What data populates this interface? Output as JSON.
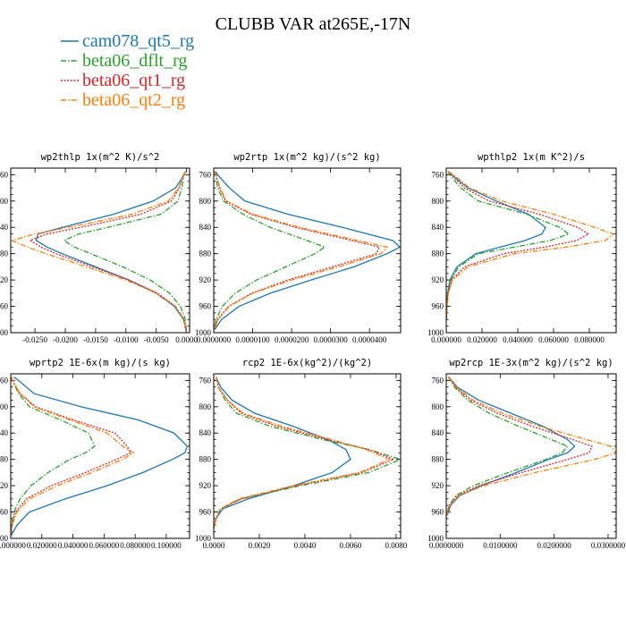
{
  "figure": {
    "title": "CLUBB VAR at265E,-17N"
  },
  "legend": [
    {
      "name": "cam078_qt5_rg",
      "color": "#1f77b4",
      "dash": "solid"
    },
    {
      "name": "beta06_dflt_rg",
      "color": "#2ca02c",
      "dash": "dashdot"
    },
    {
      "name": "beta06_qt1_rg",
      "color": "#d62728",
      "dash": "dotted"
    },
    {
      "name": "beta06_qt2_rg",
      "color": "#ff7f0e",
      "dash": "dashdot"
    }
  ],
  "chart_data": [
    {
      "type": "line",
      "title": "wp2thlp  1x(m^2 K)/s^2",
      "xlim": [
        -0.029,
        0.0005
      ],
      "ylim": [
        1000,
        750
      ],
      "xticks": [
        -0.025,
        -0.02,
        -0.015,
        -0.01,
        -0.005,
        0
      ],
      "xtick_labels": [
        "-0.0250",
        "-0.0200",
        "-0.0150",
        "-0.0100",
        "-0.0050",
        "0.0000"
      ],
      "yticks": [
        760,
        800,
        840,
        880,
        920,
        960,
        1000
      ],
      "y": [
        755,
        760,
        780,
        800,
        820,
        840,
        850,
        860,
        870,
        880,
        900,
        920,
        940,
        960,
        980,
        1000
      ],
      "series": [
        {
          "name": "cam078_qt5_rg",
          "values": [
            -0.0002,
            -0.0004,
            -0.0018,
            -0.0055,
            -0.012,
            -0.0205,
            -0.0245,
            -0.0248,
            -0.023,
            -0.0205,
            -0.015,
            -0.0095,
            -0.005,
            -0.002,
            -0.0005,
            0.0
          ]
        },
        {
          "name": "beta06_dflt_rg",
          "values": [
            -0.0002,
            -0.0004,
            -0.0008,
            -0.0014,
            -0.0042,
            -0.013,
            -0.0178,
            -0.0202,
            -0.0185,
            -0.0158,
            -0.0105,
            -0.006,
            -0.0028,
            -0.001,
            -0.0002,
            0.0
          ]
        },
        {
          "name": "beta06_qt1_rg",
          "values": [
            -0.0002,
            -0.0005,
            -0.0012,
            -0.0025,
            -0.0075,
            -0.0175,
            -0.023,
            -0.0258,
            -0.024,
            -0.0215,
            -0.0155,
            -0.0095,
            -0.0048,
            -0.0018,
            -0.0004,
            0.0
          ]
        },
        {
          "name": "beta06_qt2_rg",
          "values": [
            -0.0002,
            -0.0005,
            -0.0013,
            -0.003,
            -0.009,
            -0.0195,
            -0.025,
            -0.0288,
            -0.0262,
            -0.0232,
            -0.0165,
            -0.01,
            -0.005,
            -0.0018,
            -0.0004,
            0.0
          ]
        }
      ]
    },
    {
      "type": "line",
      "title": "wp2rtp  1x(m^2 kg)/(s^2 kg)",
      "xlim": [
        0.0,
        4.8e-05
      ],
      "ylim": [
        1000,
        750
      ],
      "xticks": [
        0.0,
        1e-05,
        2e-05,
        3e-05,
        4e-05
      ],
      "xtick_labels": [
        "0.0000000",
        "0.0000100",
        "0.0000200",
        "0.0000300",
        "0.0000400"
      ],
      "yticks": [
        760,
        800,
        840,
        880,
        920,
        960,
        1000
      ],
      "y": [
        755,
        760,
        780,
        800,
        820,
        840,
        860,
        870,
        880,
        900,
        920,
        940,
        960,
        980,
        995
      ],
      "series": [
        {
          "name": "cam078_qt5_rg",
          "values": [
            5e-07,
            1e-06,
            4e-06,
            8e-06,
            1.9e-05,
            3.3e-05,
            4.6e-05,
            4.78e-05,
            4.45e-05,
            3.6e-05,
            2.5e-05,
            1.45e-05,
            6.5e-06,
            2e-06,
            3e-07
          ]
        },
        {
          "name": "beta06_dflt_rg",
          "values": [
            2e-07,
            5e-07,
            1e-06,
            2.5e-06,
            7.5e-06,
            1.45e-05,
            2.4e-05,
            2.85e-05,
            2.6e-05,
            1.85e-05,
            1.1e-05,
            5.5e-06,
            2.2e-06,
            6e-07,
            1e-07
          ]
        },
        {
          "name": "beta06_qt1_rg",
          "values": [
            3e-07,
            6e-07,
            1.5e-06,
            3e-06,
            9.5e-06,
            2.1e-05,
            3.55e-05,
            4.25e-05,
            4.18e-05,
            3.05e-05,
            1.9e-05,
            9.8e-06,
            3.8e-06,
            1e-06,
            2e-07
          ]
        },
        {
          "name": "beta06_qt2_rg",
          "values": [
            3e-07,
            6e-07,
            1.6e-06,
            3.3e-06,
            1e-05,
            2.2e-05,
            3.7e-05,
            4.45e-05,
            4.3e-05,
            3.2e-05,
            2e-05,
            1e-05,
            4e-06,
            1.1e-06,
            2e-07
          ]
        }
      ]
    },
    {
      "type": "line",
      "title": "wpthlp2  1x(m K^2)/s",
      "xlim": [
        0.0,
        0.095
      ],
      "ylim": [
        1000,
        750
      ],
      "xticks": [
        0.0,
        0.02,
        0.04,
        0.06,
        0.08
      ],
      "xtick_labels": [
        "0.000000",
        "0.020000",
        "0.040000",
        "0.060000",
        "0.080000"
      ],
      "yticks": [
        760,
        800,
        840,
        880,
        920,
        960,
        1000
      ],
      "y": [
        755,
        760,
        780,
        800,
        820,
        840,
        850,
        860,
        870,
        880,
        900,
        920,
        940,
        960,
        980
      ],
      "series": [
        {
          "name": "cam078_qt5_rg",
          "values": [
            0.001,
            0.003,
            0.012,
            0.028,
            0.046,
            0.0555,
            0.0535,
            0.044,
            0.03,
            0.0165,
            0.006,
            0.002,
            0.0008,
            0.0003,
            0.0001
          ]
        },
        {
          "name": "beta06_dflt_rg",
          "values": [
            0.001,
            0.002,
            0.008,
            0.018,
            0.045,
            0.0635,
            0.0685,
            0.058,
            0.038,
            0.018,
            0.007,
            0.0025,
            0.0008,
            0.0003,
            0.0001
          ]
        },
        {
          "name": "beta06_qt1_rg",
          "values": [
            0.001,
            0.003,
            0.01,
            0.024,
            0.052,
            0.0735,
            0.0795,
            0.073,
            0.055,
            0.032,
            0.01,
            0.003,
            0.001,
            0.0004,
            0.0001
          ]
        },
        {
          "name": "beta06_qt2_rg",
          "values": [
            0.001,
            0.004,
            0.013,
            0.031,
            0.06,
            0.083,
            0.0935,
            0.089,
            0.067,
            0.038,
            0.012,
            0.0035,
            0.0012,
            0.0004,
            0.0001
          ]
        }
      ]
    },
    {
      "type": "line",
      "title": "wprtp2  1E-6x(m kg)/(s kg)",
      "xlim": [
        0.0,
        0.115
      ],
      "ylim": [
        1000,
        750
      ],
      "xticks": [
        0.0,
        0.02,
        0.04,
        0.06,
        0.08,
        0.1
      ],
      "xtick_labels": [
        "0.000000",
        "0.020000",
        "0.040000",
        "0.060000",
        "0.080000",
        "0.100000"
      ],
      "yticks": [
        760,
        800,
        840,
        880,
        920,
        960,
        1000
      ],
      "y": [
        755,
        760,
        780,
        800,
        820,
        840,
        860,
        870,
        880,
        900,
        920,
        940,
        960,
        980,
        995
      ],
      "series": [
        {
          "name": "cam078_qt5_rg",
          "values": [
            0.002,
            0.005,
            0.015,
            0.045,
            0.082,
            0.105,
            0.1135,
            0.112,
            0.104,
            0.085,
            0.062,
            0.035,
            0.012,
            0.004,
            0.0005
          ]
        },
        {
          "name": "beta06_dflt_rg",
          "values": [
            0.0005,
            0.001,
            0.005,
            0.012,
            0.032,
            0.05,
            0.054,
            0.048,
            0.038,
            0.024,
            0.013,
            0.006,
            0.002,
            0.0005,
            0.0001
          ]
        },
        {
          "name": "beta06_qt1_rg",
          "values": [
            0.0005,
            0.001,
            0.006,
            0.016,
            0.04,
            0.067,
            0.075,
            0.077,
            0.068,
            0.048,
            0.026,
            0.01,
            0.003,
            0.0008,
            0.0001
          ]
        },
        {
          "name": "beta06_qt2_rg",
          "values": [
            0.0005,
            0.001,
            0.006,
            0.015,
            0.038,
            0.062,
            0.072,
            0.079,
            0.072,
            0.052,
            0.03,
            0.012,
            0.004,
            0.001,
            0.0001
          ]
        }
      ]
    },
    {
      "type": "line",
      "title": "rcp2  1E-6x(kg^2)/(kg^2)",
      "xlim": [
        0.0,
        0.0082
      ],
      "ylim": [
        1000,
        750
      ],
      "xticks": [
        0.0,
        0.002,
        0.004,
        0.006,
        0.008
      ],
      "xtick_labels": [
        "0.0000",
        "0.0020",
        "0.0040",
        "0.0060",
        "0.0080"
      ],
      "yticks": [
        760,
        800,
        840,
        880,
        920,
        960,
        1000
      ],
      "y": [
        755,
        770,
        790,
        810,
        830,
        850,
        865,
        880,
        900,
        920,
        940,
        955,
        970,
        985
      ],
      "series": [
        {
          "name": "cam078_qt5_rg",
          "values": [
            0.0001,
            0.0003,
            0.0008,
            0.0018,
            0.0035,
            0.005,
            0.0058,
            0.006,
            0.0052,
            0.0035,
            0.0015,
            0.0004,
            0.0001,
            0.0
          ]
        },
        {
          "name": "beta06_dflt_rg",
          "values": [
            0.0001,
            0.0002,
            0.0005,
            0.001,
            0.0025,
            0.0048,
            0.0068,
            0.0082,
            0.0068,
            0.0038,
            0.0012,
            0.0003,
            0.0001,
            0.0
          ]
        },
        {
          "name": "beta06_qt1_rg",
          "values": [
            0.0001,
            0.0002,
            0.0006,
            0.0012,
            0.0028,
            0.005,
            0.0068,
            0.0079,
            0.0065,
            0.0036,
            0.0012,
            0.0003,
            0.0001,
            0.0
          ]
        },
        {
          "name": "beta06_qt2_rg",
          "values": [
            0.0001,
            0.0002,
            0.0006,
            0.0013,
            0.003,
            0.0052,
            0.0067,
            0.0077,
            0.0064,
            0.0035,
            0.0011,
            0.0003,
            0.0001,
            0.0
          ]
        }
      ]
    },
    {
      "type": "line",
      "title": "wp2rcp  1E-3x(m^2 kg)/(s^2 kg)",
      "xlim": [
        0.0,
        0.0315
      ],
      "ylim": [
        1000,
        750
      ],
      "xticks": [
        0.0,
        0.01,
        0.02,
        0.03
      ],
      "xtick_labels": [
        "0.0000000",
        "0.0100000",
        "0.0200000",
        "0.0300000"
      ],
      "yticks": [
        760,
        800,
        840,
        880,
        920,
        960,
        1000
      ],
      "y": [
        755,
        770,
        790,
        810,
        830,
        850,
        860,
        870,
        880,
        900,
        920,
        935,
        950,
        965
      ],
      "series": [
        {
          "name": "cam078_qt5_rg",
          "values": [
            0.0005,
            0.002,
            0.006,
            0.012,
            0.018,
            0.0225,
            0.0238,
            0.0225,
            0.019,
            0.013,
            0.0065,
            0.0025,
            0.0008,
            0.0002
          ]
        },
        {
          "name": "beta06_dflt_rg",
          "values": [
            0.0004,
            0.0015,
            0.004,
            0.008,
            0.0135,
            0.0195,
            0.0225,
            0.0215,
            0.0185,
            0.0115,
            0.005,
            0.0018,
            0.0005,
            0.0001
          ]
        },
        {
          "name": "beta06_qt1_rg",
          "values": [
            0.0004,
            0.0017,
            0.0045,
            0.0095,
            0.016,
            0.0235,
            0.027,
            0.0265,
            0.0225,
            0.014,
            0.006,
            0.002,
            0.0006,
            0.0001
          ]
        },
        {
          "name": "beta06_qt2_rg",
          "values": [
            0.0005,
            0.0018,
            0.005,
            0.0105,
            0.0175,
            0.026,
            0.0305,
            0.0315,
            0.0275,
            0.0165,
            0.007,
            0.0023,
            0.0007,
            0.0001
          ]
        }
      ]
    }
  ]
}
